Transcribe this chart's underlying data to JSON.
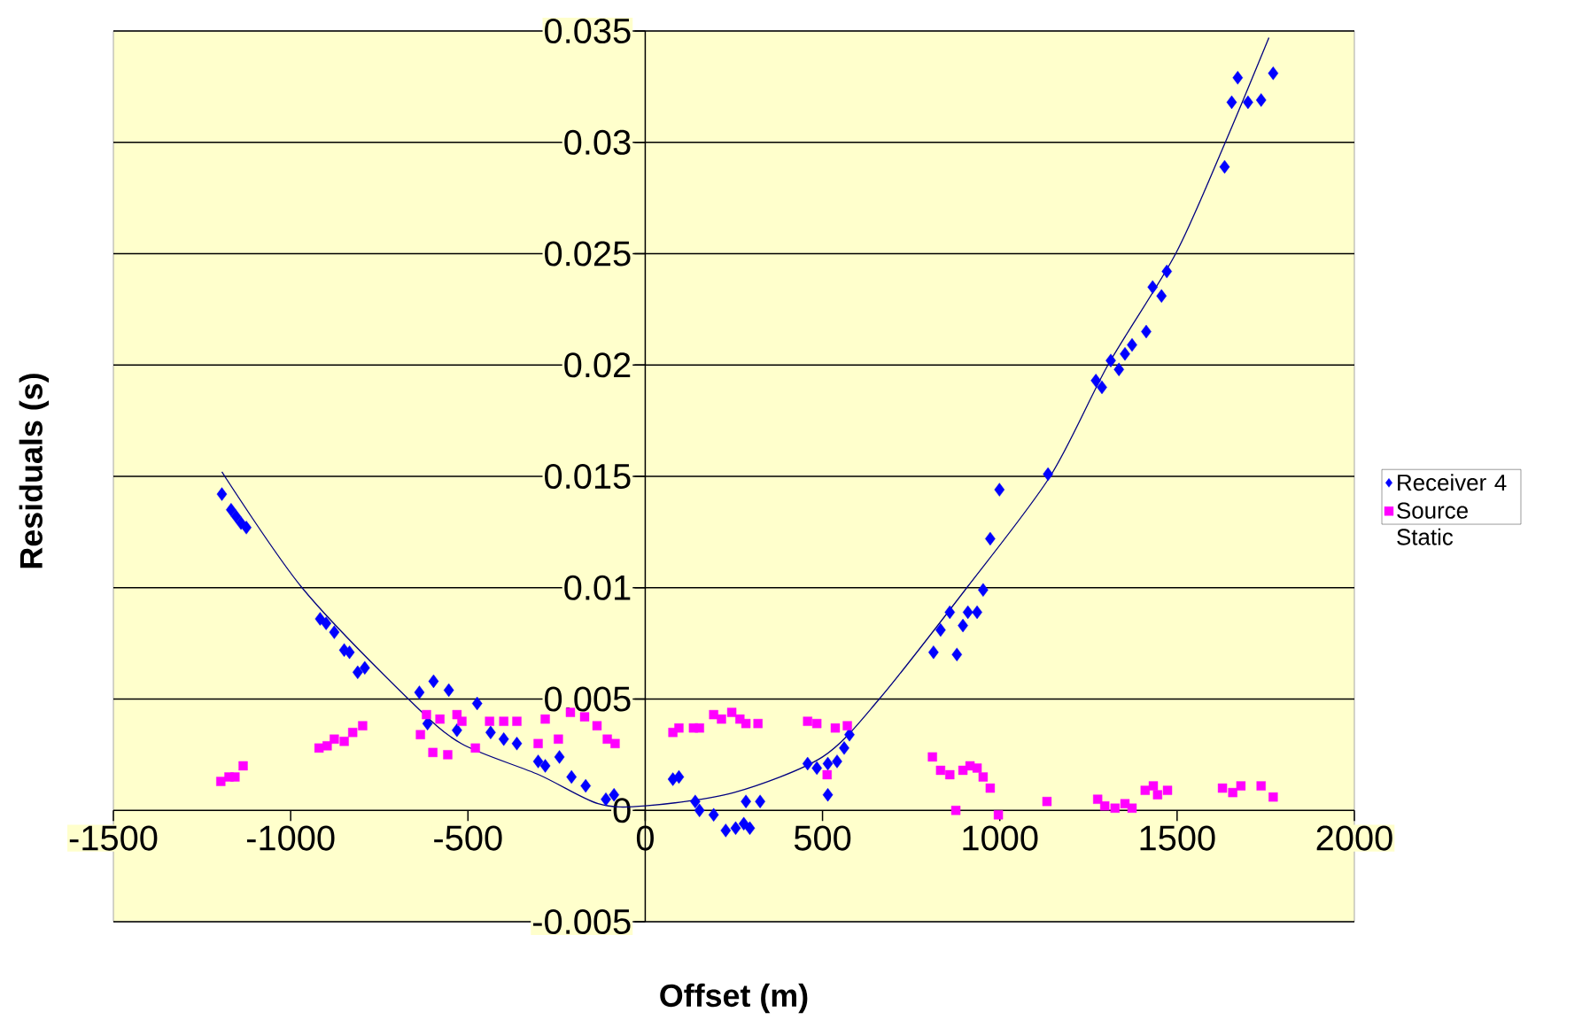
{
  "chart_data": {
    "type": "scatter",
    "xlabel": "Offset (m)",
    "ylabel": "Residuals (s)",
    "xlim": [
      -1500,
      2000
    ],
    "ylim": [
      -0.005,
      0.035
    ],
    "xticks": [
      -1500,
      -1000,
      -500,
      0,
      500,
      1000,
      1500,
      2000
    ],
    "yticks": [
      -0.005,
      0,
      0.005,
      0.01,
      0.015,
      0.02,
      0.025,
      0.03,
      0.035
    ],
    "grid": "y",
    "legend": "right",
    "series": [
      {
        "name": "Receiver 4",
        "color": "#0000ff",
        "marker": "diamond",
        "x": [
          -1194,
          -1168,
          -1154,
          -1140,
          -1125,
          -917,
          -900,
          -877,
          -849,
          -834,
          -811,
          -791,
          -637,
          -597,
          -554,
          -614,
          -531,
          -474,
          -436,
          -399,
          -362,
          -302,
          -282,
          -242,
          -208,
          -168,
          -111,
          -88,
          78,
          95,
          141,
          153,
          193,
          227,
          255,
          278,
          295,
          284,
          324,
          458,
          484,
          515,
          515,
          541,
          561,
          576,
          813,
          833,
          859,
          879,
          896,
          910,
          936,
          953,
          973,
          999,
          1136,
          1271,
          1288,
          1313,
          1336,
          1353,
          1373,
          1413,
          1431,
          1456,
          1471,
          1634,
          1654,
          1671,
          1700,
          1737,
          1771
        ],
        "values": [
          0.0142,
          0.0135,
          0.0132,
          0.0129,
          0.0127,
          0.0086,
          0.0084,
          0.008,
          0.0072,
          0.0071,
          0.0062,
          0.0064,
          0.0053,
          0.0058,
          0.0054,
          0.0039,
          0.0036,
          0.0048,
          0.0035,
          0.0032,
          0.003,
          0.0022,
          0.002,
          0.0024,
          0.0015,
          0.0011,
          0.0005,
          0.0007,
          0.0014,
          0.0015,
          0.0004,
          0.0,
          -0.0002,
          -0.0009,
          -0.0008,
          -0.0006,
          -0.0008,
          0.0004,
          0.0004,
          0.0021,
          0.0019,
          0.0021,
          0.0007,
          0.0022,
          0.0028,
          0.0034,
          0.0071,
          0.0081,
          0.0089,
          0.007,
          0.0083,
          0.0089,
          0.0089,
          0.0099,
          0.0122,
          0.0144,
          0.0151,
          0.0193,
          0.019,
          0.0202,
          0.0198,
          0.0205,
          0.0209,
          0.0215,
          0.0235,
          0.0231,
          0.0242,
          0.0289,
          0.0318,
          0.0329,
          0.0318,
          0.0319,
          0.0331
        ]
      },
      {
        "name": "Source Static",
        "color": "#ff00ff",
        "marker": "square",
        "x": [
          -1197,
          -1174,
          -1157,
          -1134,
          -920,
          -897,
          -877,
          -849,
          -825,
          -797,
          -634,
          -617,
          -599,
          -579,
          -557,
          -531,
          -517,
          -479,
          -439,
          -399,
          -362,
          -302,
          -282,
          -245,
          -211,
          -171,
          -136,
          -107,
          -85,
          78,
          95,
          136,
          153,
          193,
          215,
          244,
          267,
          284,
          318,
          458,
          484,
          513,
          536,
          570,
          810,
          833,
          859,
          876,
          896,
          916,
          936,
          953,
          973,
          996,
          1133,
          1276,
          1296,
          1325,
          1353,
          1373,
          1410,
          1433,
          1445,
          1473,
          1628,
          1657,
          1680,
          1737,
          1771
        ],
        "values": [
          0.0013,
          0.0015,
          0.0015,
          0.002,
          0.0028,
          0.0029,
          0.0032,
          0.0031,
          0.0035,
          0.0038,
          0.0034,
          0.0043,
          0.0026,
          0.0041,
          0.0025,
          0.0043,
          0.004,
          0.0028,
          0.004,
          0.004,
          0.004,
          0.003,
          0.0041,
          0.0032,
          0.0044,
          0.0042,
          0.0038,
          0.0032,
          0.003,
          0.0035,
          0.0037,
          0.0037,
          0.0037,
          0.0043,
          0.0041,
          0.0044,
          0.0041,
          0.0039,
          0.0039,
          0.004,
          0.0039,
          0.0016,
          0.0037,
          0.0038,
          0.0024,
          0.0018,
          0.0016,
          0.0,
          0.0018,
          0.002,
          0.0019,
          0.0015,
          0.001,
          -0.0002,
          0.0004,
          0.0005,
          0.0002,
          0.0001,
          0.0003,
          0.0001,
          0.0009,
          0.0011,
          0.0007,
          0.0009,
          0.001,
          0.0008,
          0.0011,
          0.0011,
          0.0006
        ]
      },
      {
        "type": "line",
        "color": "#000080",
        "marker": "none",
        "x": [
          -1194,
          -968,
          -668,
          -519,
          -300,
          -133,
          0,
          250,
          500,
          660,
          907,
          1142,
          1305,
          1496,
          1636,
          1759
        ],
        "values": [
          0.0152,
          0.01,
          0.005,
          0.003,
          0.0016,
          0.0003,
          0.0002,
          0.0008,
          0.0024,
          0.005,
          0.01,
          0.015,
          0.02,
          0.025,
          0.03,
          0.0347
        ]
      }
    ]
  }
}
